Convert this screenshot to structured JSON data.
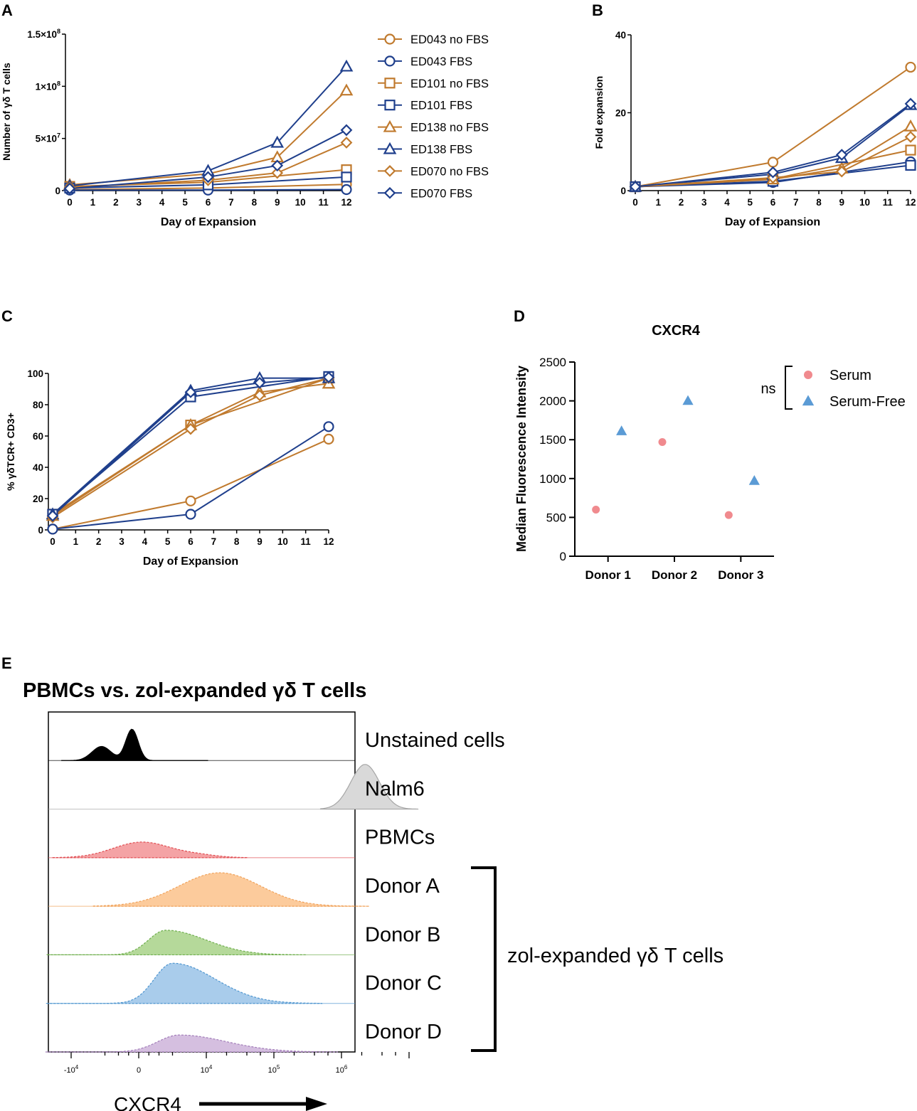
{
  "figure": {
    "panel_letters": [
      "A",
      "B",
      "C",
      "D",
      "E"
    ]
  },
  "styles": {
    "orange": "#C07A2E",
    "navy": "#1F3F8C",
    "serum_color": "#F08A8E",
    "serum_free_color": "#5B9BD5"
  },
  "legend_A": [
    {
      "label": "ED043 no FBS",
      "marker": "circle",
      "color": "#C07A2E"
    },
    {
      "label": "ED043 FBS",
      "marker": "circle",
      "color": "#1F3F8C"
    },
    {
      "label": "ED101 no FBS",
      "marker": "square",
      "color": "#C07A2E"
    },
    {
      "label": "ED101 FBS",
      "marker": "square",
      "color": "#1F3F8C"
    },
    {
      "label": "ED138 no FBS",
      "marker": "triangle",
      "color": "#C07A2E"
    },
    {
      "label": "ED138 FBS",
      "marker": "triangle",
      "color": "#1F3F8C"
    },
    {
      "label": "ED070 no FBS",
      "marker": "diamond",
      "color": "#C07A2E"
    },
    {
      "label": "ED070 FBS",
      "marker": "diamond",
      "color": "#1F3F8C"
    }
  ],
  "chart_data": [
    {
      "panel": "A",
      "type": "line",
      "title": "",
      "xlabel": "Day of Expansion",
      "ylabel": "Number of γδ T cells",
      "xlim": [
        0,
        12
      ],
      "ylim": [
        0,
        150000000
      ],
      "x_ticks": [
        0,
        1,
        2,
        3,
        4,
        5,
        6,
        7,
        8,
        9,
        10,
        11,
        12
      ],
      "y_ticks": [
        {
          "value": 0,
          "label": "0",
          "exp": ""
        },
        {
          "value": 50000000,
          "label": "5×10",
          "exp": "7"
        },
        {
          "value": 100000000,
          "label": "1×10",
          "exp": "8"
        },
        {
          "value": 150000000,
          "label": "1.5×10",
          "exp": "8"
        }
      ],
      "series": [
        {
          "name": "ED043 no FBS",
          "marker": "circle",
          "color": "#C07A2E",
          "x": [
            0,
            6,
            12
          ],
          "values": [
            1000000,
            2500000,
            6000000
          ]
        },
        {
          "name": "ED043 FBS",
          "marker": "circle",
          "color": "#1F3F8C",
          "x": [
            0,
            6,
            12
          ],
          "values": [
            500000,
            500000,
            1000000
          ]
        },
        {
          "name": "ED101 no FBS",
          "marker": "square",
          "color": "#C07A2E",
          "x": [
            0,
            6,
            12
          ],
          "values": [
            4000000,
            8000000,
            20000000
          ]
        },
        {
          "name": "ED101 FBS",
          "marker": "square",
          "color": "#1F3F8C",
          "x": [
            0,
            6,
            12
          ],
          "values": [
            2500000,
            5500000,
            13000000
          ]
        },
        {
          "name": "ED138 no FBS",
          "marker": "triangle",
          "color": "#C07A2E",
          "x": [
            0,
            6,
            9,
            12
          ],
          "values": [
            5500000,
            16000000,
            32000000,
            96000000
          ]
        },
        {
          "name": "ED138 FBS",
          "marker": "triangle",
          "color": "#1F3F8C",
          "x": [
            0,
            6,
            9,
            12
          ],
          "values": [
            4500000,
            19000000,
            46000000,
            119000000
          ]
        },
        {
          "name": "ED070 no FBS",
          "marker": "diamond",
          "color": "#C07A2E",
          "x": [
            0,
            6,
            9,
            12
          ],
          "values": [
            3000000,
            10000000,
            17000000,
            46000000
          ]
        },
        {
          "name": "ED070 FBS",
          "marker": "diamond",
          "color": "#1F3F8C",
          "x": [
            0,
            6,
            9,
            12
          ],
          "values": [
            2000000,
            13000000,
            24000000,
            58000000
          ]
        }
      ]
    },
    {
      "panel": "B",
      "type": "line",
      "title": "",
      "xlabel": "Day of Expansion",
      "ylabel": "Fold expansion",
      "xlim": [
        0,
        12
      ],
      "ylim": [
        0,
        40
      ],
      "x_ticks": [
        0,
        1,
        2,
        3,
        4,
        5,
        6,
        7,
        8,
        9,
        10,
        11,
        12
      ],
      "y_ticks": [
        {
          "value": 0,
          "label": "0",
          "exp": ""
        },
        {
          "value": 20,
          "label": "20",
          "exp": ""
        },
        {
          "value": 40,
          "label": "40",
          "exp": ""
        }
      ],
      "series": [
        {
          "name": "ED043 no FBS",
          "marker": "circle",
          "color": "#C07A2E",
          "x": [
            0,
            6,
            12
          ],
          "values": [
            1,
            7.3,
            31.7
          ]
        },
        {
          "name": "ED043 FBS",
          "marker": "circle",
          "color": "#1F3F8C",
          "x": [
            0,
            6,
            12
          ],
          "values": [
            1,
            2.1,
            7.4
          ]
        },
        {
          "name": "ED101 no FBS",
          "marker": "square",
          "color": "#C07A2E",
          "x": [
            0,
            6,
            12
          ],
          "values": [
            1,
            3.0,
            10.4
          ]
        },
        {
          "name": "ED101 FBS",
          "marker": "square",
          "color": "#1F3F8C",
          "x": [
            0,
            6,
            12
          ],
          "values": [
            1,
            2.4,
            6.5
          ]
        },
        {
          "name": "ED138 no FBS",
          "marker": "triangle",
          "color": "#C07A2E",
          "x": [
            0,
            6,
            9,
            12
          ],
          "values": [
            1,
            2.9,
            5.7,
            16.5
          ]
        },
        {
          "name": "ED138 FBS",
          "marker": "triangle",
          "color": "#1F3F8C",
          "x": [
            0,
            6,
            9,
            12
          ],
          "values": [
            1,
            4.2,
            8.4,
            22.0
          ]
        },
        {
          "name": "ED070 no FBS",
          "marker": "diamond",
          "color": "#C07A2E",
          "x": [
            0,
            6,
            9,
            12
          ],
          "values": [
            1,
            3.3,
            4.9,
            13.8
          ]
        },
        {
          "name": "ED070 FBS",
          "marker": "diamond",
          "color": "#1F3F8C",
          "x": [
            0,
            6,
            9,
            12
          ],
          "values": [
            1,
            4.7,
            9.2,
            22.3
          ]
        }
      ]
    },
    {
      "panel": "C",
      "type": "line",
      "title": "",
      "xlabel": "Day of Expansion",
      "ylabel": "% γδTCR+ CD3+",
      "xlim": [
        0,
        12
      ],
      "ylim": [
        0,
        100
      ],
      "x_ticks": [
        0,
        1,
        2,
        3,
        4,
        5,
        6,
        7,
        8,
        9,
        10,
        11,
        12
      ],
      "y_ticks": [
        {
          "value": 0,
          "label": "0",
          "exp": ""
        },
        {
          "value": 20,
          "label": "20",
          "exp": ""
        },
        {
          "value": 40,
          "label": "40",
          "exp": ""
        },
        {
          "value": 60,
          "label": "60",
          "exp": ""
        },
        {
          "value": 80,
          "label": "80",
          "exp": ""
        },
        {
          "value": 100,
          "label": "100",
          "exp": ""
        }
      ],
      "series": [
        {
          "name": "ED043 no FBS",
          "marker": "circle",
          "color": "#C07A2E",
          "x": [
            0,
            6,
            12
          ],
          "values": [
            0.5,
            18.5,
            58
          ]
        },
        {
          "name": "ED043 FBS",
          "marker": "circle",
          "color": "#1F3F8C",
          "x": [
            0,
            6,
            12
          ],
          "values": [
            0.5,
            10,
            66
          ]
        },
        {
          "name": "ED101 no FBS",
          "marker": "square",
          "color": "#C07A2E",
          "x": [
            0,
            6,
            12
          ],
          "values": [
            10,
            67,
            97
          ]
        },
        {
          "name": "ED101 FBS",
          "marker": "square",
          "color": "#1F3F8C",
          "x": [
            0,
            6,
            12
          ],
          "values": [
            10,
            85,
            98
          ]
        },
        {
          "name": "ED138 no FBS",
          "marker": "triangle",
          "color": "#C07A2E",
          "x": [
            0,
            6,
            9,
            12
          ],
          "values": [
            9,
            67,
            88,
            93.5
          ]
        },
        {
          "name": "ED138 FBS",
          "marker": "triangle",
          "color": "#1F3F8C",
          "x": [
            0,
            6,
            9,
            12
          ],
          "values": [
            10,
            89,
            97,
            97
          ]
        },
        {
          "name": "ED070 no FBS",
          "marker": "diamond",
          "color": "#C07A2E",
          "x": [
            0,
            6,
            9,
            12
          ],
          "values": [
            8,
            64.5,
            86,
            97
          ]
        },
        {
          "name": "ED070 FBS",
          "marker": "diamond",
          "color": "#1F3F8C",
          "x": [
            0,
            6,
            9,
            12
          ],
          "values": [
            9,
            88,
            94,
            97.5
          ]
        }
      ]
    },
    {
      "panel": "D",
      "type": "scatter",
      "title": "CXCR4",
      "xlabel": "",
      "ylabel": "Median Fluorescence Intensity",
      "categories": [
        "Donor 1",
        "Donor 2",
        "Donor 3"
      ],
      "ylim": [
        0,
        2500
      ],
      "y_ticks": [
        {
          "value": 0,
          "label": "0",
          "exp": ""
        },
        {
          "value": 500,
          "label": "500",
          "exp": ""
        },
        {
          "value": 1000,
          "label": "1000",
          "exp": ""
        },
        {
          "value": 1500,
          "label": "1500",
          "exp": ""
        },
        {
          "value": 2000,
          "label": "2000",
          "exp": ""
        },
        {
          "value": 2500,
          "label": "2500",
          "exp": ""
        }
      ],
      "series": [
        {
          "name": "Serum",
          "marker": "dot",
          "color": "#F08A8E",
          "values": [
            600,
            1470,
            530
          ]
        },
        {
          "name": "Serum-Free",
          "marker": "triangle",
          "color": "#5B9BD5",
          "values": [
            1610,
            2000,
            970
          ]
        }
      ],
      "annotation": "ns"
    },
    {
      "panel": "E",
      "type": "area",
      "title": "PBMCs vs. zol-expanded γδ T cells",
      "xlabel": "CXCR4",
      "x_axis_labels": [
        {
          "base": "-10",
          "exp": "4"
        },
        {
          "base": "0",
          "exp": ""
        },
        {
          "base": "10",
          "exp": "4"
        },
        {
          "base": "10",
          "exp": "5"
        },
        {
          "base": "10",
          "exp": "6"
        }
      ],
      "bracket_label": "zol-expanded γδ T cells",
      "series": [
        {
          "name": "Unstained cells",
          "fill": "#000000",
          "line": "#000000",
          "peak_log_position": -0.15,
          "spread": 0.45,
          "shape": "bimodal"
        },
        {
          "name": "Nalm6",
          "fill": "#D9D9D9",
          "line": "#A6A6A6",
          "peak_log_position": 3.35,
          "spread": 0.3,
          "shape": "narrow"
        },
        {
          "name": "PBMCs",
          "fill": "#F4A3A5",
          "line": "#E04D52",
          "peak_log_position": 0.05,
          "spread": 0.6,
          "shape": "low"
        },
        {
          "name": "Donor A",
          "fill": "#FCCB9C",
          "line": "#F0A25A",
          "peak_log_position": 1.2,
          "spread": 0.85,
          "shape": "broad"
        },
        {
          "name": "Donor B",
          "fill": "#B5D99A",
          "line": "#6FAE4E",
          "peak_log_position": 0.4,
          "spread": 0.8,
          "shape": "skewed"
        },
        {
          "name": "Donor C",
          "fill": "#A9CCEB",
          "line": "#4E95CF",
          "peak_log_position": 0.5,
          "spread": 0.85,
          "shape": "skewed-tall"
        },
        {
          "name": "Donor D",
          "fill": "#D5BFE0",
          "line": "#A17CB8",
          "peak_log_position": 0.6,
          "spread": 0.9,
          "shape": "flat"
        }
      ]
    }
  ]
}
